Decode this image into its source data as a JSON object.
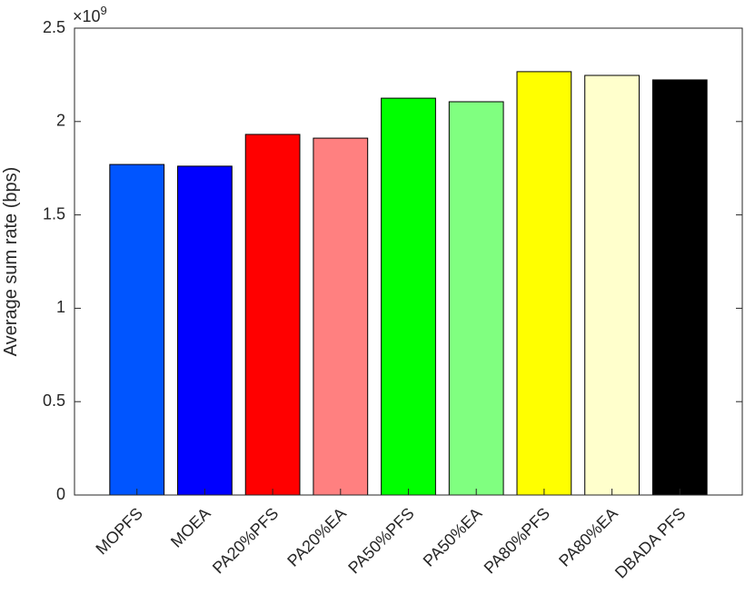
{
  "chart_data": {
    "type": "bar",
    "ylabel": "Average sum rate (bps)",
    "y_multiplier": {
      "base": "×10",
      "exponent": "9"
    },
    "categories": [
      "MOPFS",
      "MOEA",
      "PA20%PFS",
      "PA20%EA",
      "PA50%PFS",
      "PA50%EA",
      "PA80%PFS",
      "PA80%EA",
      "DBADA PFS"
    ],
    "values": [
      1.77,
      1.761,
      1.931,
      1.911,
      2.125,
      2.106,
      2.267,
      2.247,
      2.223
    ],
    "colors": [
      "#0055ff",
      "#0000ff",
      "#ff0000",
      "#ff8080",
      "#00ff00",
      "#80ff80",
      "#ffff00",
      "#ffffcc",
      "#000000"
    ],
    "ylim": [
      0,
      2.5
    ],
    "yticks": [
      0,
      0.5,
      1,
      1.5,
      2,
      2.5
    ],
    "grid": false
  }
}
